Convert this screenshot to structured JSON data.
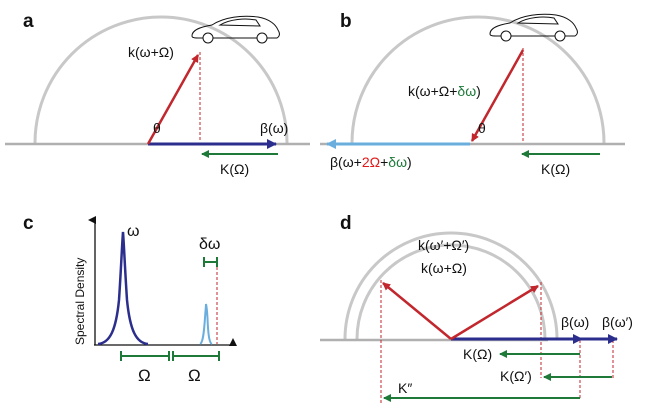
{
  "colors": {
    "semicircle": "#c8c8c8",
    "baseline": "#b0b0b0",
    "red_arrow": "#c1272d",
    "navy_arrow": "#2b2e8c",
    "light_blue": "#6aaede",
    "green": "#1f7a3a",
    "text_red": "#e01a1a",
    "dashed": "#c1272d"
  },
  "icons": {
    "car_a": "car-outline-icon",
    "car_b": "car-outline-icon"
  },
  "panel_a": {
    "letter": "a",
    "k_label": "k(ω+Ω)",
    "theta": "θ",
    "beta_label": "β(ω)",
    "K_label": "K(Ω)"
  },
  "panel_b": {
    "letter": "b",
    "k_prefix": "k(ω+Ω+",
    "k_delta": "δω",
    "k_suffix": ")",
    "theta": "θ",
    "beta_prefix": "β(ω+",
    "beta_two_omega": "2Ω",
    "beta_plus": "+",
    "beta_delta": "δω",
    "beta_suffix": ")",
    "K_label": "K(Ω)"
  },
  "panel_c": {
    "letter": "c",
    "y_axis_label": "Spectral Density",
    "omega_peak": "ω",
    "delta_omega": "δω",
    "omega_1": "Ω",
    "omega_2": "Ω"
  },
  "panel_d": {
    "letter": "d",
    "k_outer": "k(ω′+Ω′)",
    "k_inner": "k(ω+Ω)",
    "beta": "β(ω)",
    "beta_prime": "β(ω′)",
    "K": "K(Ω)",
    "K_prime": "K(Ω′)",
    "K_double_prime": "K″"
  }
}
